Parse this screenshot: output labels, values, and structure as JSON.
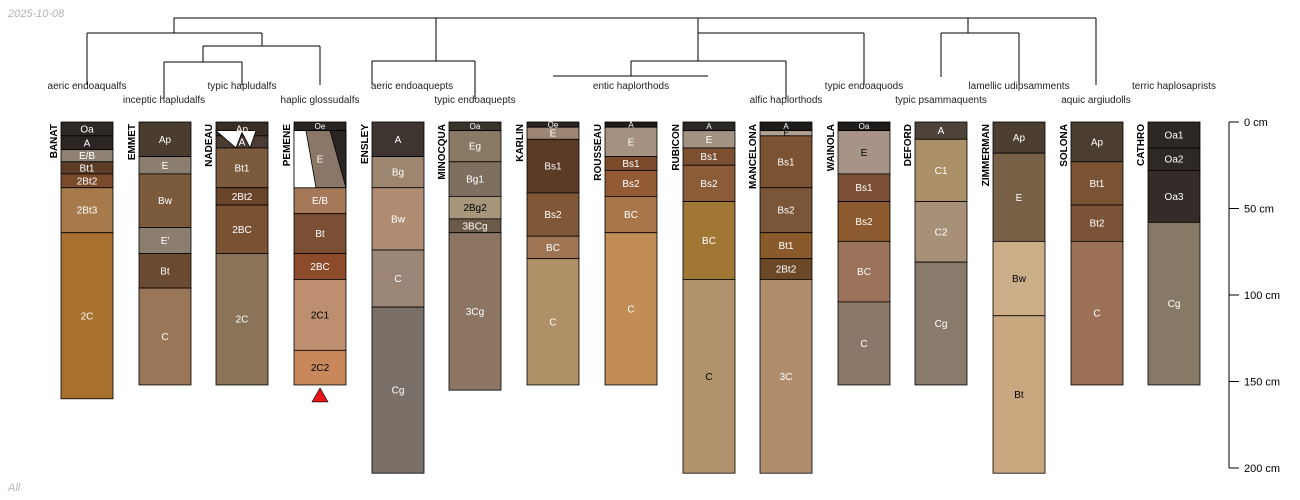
{
  "date_label": "2025-10-08",
  "subset_label": "All",
  "chart_data": {
    "type": "soil-profile-sketch",
    "title": "",
    "depth_unit": "cm",
    "depth_axis": {
      "ylim": [
        0,
        200
      ],
      "ticks": [
        0,
        50,
        100,
        150,
        200
      ],
      "tick_labels": [
        "0 cm",
        "50 cm",
        "100 cm",
        "150 cm",
        "200 cm"
      ]
    },
    "classification_labels": [
      {
        "text": "aeric endoaqualfs",
        "row": 1
      },
      {
        "text": "inceptic hapludalfs",
        "row": 2
      },
      {
        "text": "typic hapludalfs",
        "row": 1
      },
      {
        "text": "haplic glossudalfs",
        "row": 2
      },
      {
        "text": "aeric endoaquepts",
        "row": 1
      },
      {
        "text": "typic endoaquepts",
        "row": 2
      },
      {
        "text": "entic haplorthods",
        "row": 1
      },
      {
        "text": "alfic haplorthods",
        "row": 2
      },
      {
        "text": "typic endoaquods",
        "row": 1
      },
      {
        "text": "typic psammaquents",
        "row": 2
      },
      {
        "text": "lamellic udipsamments",
        "row": 1
      },
      {
        "text": "aquic argiudolls",
        "row": 2
      },
      {
        "text": "terric haplosaprists",
        "row": 1
      }
    ],
    "profiles": [
      {
        "name": "BANAT",
        "horizons": [
          {
            "name": "Oa",
            "top": 0,
            "bottom": 8,
            "color": "#2f2a26"
          },
          {
            "name": "A",
            "top": 8,
            "bottom": 16,
            "color": "#2b2622"
          },
          {
            "name": "E/B",
            "top": 16,
            "bottom": 23,
            "color": "#8f8275"
          },
          {
            "name": "Bt1",
            "top": 23,
            "bottom": 30,
            "color": "#5b3c27"
          },
          {
            "name": "2Bt2",
            "top": 30,
            "bottom": 38,
            "color": "#7a4a2a"
          },
          {
            "name": "2Bt3",
            "top": 38,
            "bottom": 64,
            "color": "#a77a4b"
          },
          {
            "name": "2C",
            "top": 64,
            "bottom": 160,
            "color": "#a8702e"
          }
        ]
      },
      {
        "name": "EMMET",
        "horizons": [
          {
            "name": "Ap",
            "top": 0,
            "bottom": 20,
            "color": "#4a3d30"
          },
          {
            "name": "E",
            "top": 20,
            "bottom": 30,
            "color": "#8c7e6f"
          },
          {
            "name": "Bw",
            "top": 30,
            "bottom": 61,
            "color": "#7c5a3c"
          },
          {
            "name": "E'",
            "top": 61,
            "bottom": 76,
            "color": "#8b7e6e"
          },
          {
            "name": "Bt",
            "top": 76,
            "bottom": 96,
            "color": "#6a4b32"
          },
          {
            "name": "C",
            "top": 96,
            "bottom": 152,
            "color": "#9a7658"
          }
        ]
      },
      {
        "name": "NADEAU",
        "horizons": [
          {
            "name": "Ap",
            "top": 0,
            "bottom": 8,
            "color": "#3b2e25"
          },
          {
            "name": "A",
            "top": 8,
            "bottom": 15,
            "color": "#4a3c32"
          },
          {
            "name": "Bt1",
            "top": 15,
            "bottom": 38,
            "color": "#7c5a3c"
          },
          {
            "name": "2Bt2",
            "top": 38,
            "bottom": 48,
            "color": "#6a4428"
          },
          {
            "name": "2BC",
            "top": 48,
            "bottom": 76,
            "color": "#7a5133"
          },
          {
            "name": "2C",
            "top": 76,
            "bottom": 152,
            "color": "#8a7358"
          }
        ]
      },
      {
        "name": "PEMENE",
        "horizons": [
          {
            "name": "Oe",
            "top": 0,
            "bottom": 5,
            "color": "#2a2522"
          },
          {
            "name": "E",
            "top": 5,
            "bottom": 38,
            "color": "#8a7767"
          },
          {
            "name": "E/B",
            "top": 38,
            "bottom": 53,
            "color": "#a6785a"
          },
          {
            "name": "Bt",
            "top": 53,
            "bottom": 76,
            "color": "#7b4f34"
          },
          {
            "name": "2BC",
            "top": 76,
            "bottom": 91,
            "color": "#8c4c2b"
          },
          {
            "name": "2C1",
            "top": 91,
            "bottom": 132,
            "color": "#bd8f70"
          },
          {
            "name": "2C2",
            "top": 132,
            "bottom": 152,
            "color": "#c8885c"
          }
        ]
      },
      {
        "name": "ENSLEY",
        "horizons": [
          {
            "name": "A",
            "top": 0,
            "bottom": 20,
            "color": "#3e3530"
          },
          {
            "name": "Bg",
            "top": 20,
            "bottom": 38,
            "color": "#9d8670"
          },
          {
            "name": "Bw",
            "top": 38,
            "bottom": 74,
            "color": "#b08c73"
          },
          {
            "name": "C",
            "top": 74,
            "bottom": 107,
            "color": "#9b8678"
          },
          {
            "name": "Cg",
            "top": 107,
            "bottom": 203,
            "color": "#7a7068"
          }
        ]
      },
      {
        "name": "MINOCQUA",
        "horizons": [
          {
            "name": "Oa",
            "top": 0,
            "bottom": 5,
            "color": "#3a332c"
          },
          {
            "name": "Eg",
            "top": 5,
            "bottom": 23,
            "color": "#8a7a65"
          },
          {
            "name": "Bg1",
            "top": 23,
            "bottom": 43,
            "color": "#7e705f"
          },
          {
            "name": "2Bg2",
            "top": 43,
            "bottom": 56,
            "color": "#a8967a"
          },
          {
            "name": "3BCg",
            "top": 56,
            "bottom": 64,
            "color": "#6b5a48"
          },
          {
            "name": "3Cg",
            "top": 64,
            "bottom": 155,
            "color": "#8c7663"
          }
        ]
      },
      {
        "name": "KARLIN",
        "horizons": [
          {
            "name": "Oe",
            "top": 0,
            "bottom": 3,
            "color": "#2b2520"
          },
          {
            "name": "E",
            "top": 3,
            "bottom": 10,
            "color": "#9e8675"
          },
          {
            "name": "Bs1",
            "top": 10,
            "bottom": 41,
            "color": "#5b3b26"
          },
          {
            "name": "Bs2",
            "top": 41,
            "bottom": 66,
            "color": "#805838"
          },
          {
            "name": "BC",
            "top": 66,
            "bottom": 79,
            "color": "#9e7452"
          },
          {
            "name": "C",
            "top": 79,
            "bottom": 152,
            "color": "#b09167"
          }
        ]
      },
      {
        "name": "ROUSSEAU",
        "horizons": [
          {
            "name": "A",
            "top": 0,
            "bottom": 3,
            "color": "#1e1b19"
          },
          {
            "name": "E",
            "top": 3,
            "bottom": 20,
            "color": "#a69180"
          },
          {
            "name": "Bs1",
            "top": 20,
            "bottom": 28,
            "color": "#7b4a2a"
          },
          {
            "name": "Bs2",
            "top": 28,
            "bottom": 43,
            "color": "#925b33"
          },
          {
            "name": "BC",
            "top": 43,
            "bottom": 64,
            "color": "#a9764a"
          },
          {
            "name": "C",
            "top": 64,
            "bottom": 152,
            "color": "#c18c55"
          }
        ]
      },
      {
        "name": "RUBICON",
        "horizons": [
          {
            "name": "A",
            "top": 0,
            "bottom": 5,
            "color": "#2c2824"
          },
          {
            "name": "E",
            "top": 5,
            "bottom": 15,
            "color": "#a29282"
          },
          {
            "name": "Bs1",
            "top": 15,
            "bottom": 25,
            "color": "#7b4f30"
          },
          {
            "name": "Bs2",
            "top": 25,
            "bottom": 46,
            "color": "#8a5c38"
          },
          {
            "name": "BC",
            "top": 46,
            "bottom": 91,
            "color": "#a07735"
          },
          {
            "name": "C",
            "top": 91,
            "bottom": 203,
            "color": "#b0926d"
          }
        ]
      },
      {
        "name": "MANCELONA",
        "horizons": [
          {
            "name": "A",
            "top": 0,
            "bottom": 5,
            "color": "#1f1b18"
          },
          {
            "name": "E",
            "top": 5,
            "bottom": 8,
            "color": "#b0a090"
          },
          {
            "name": "Bs1",
            "top": 8,
            "bottom": 38,
            "color": "#7b5232"
          },
          {
            "name": "Bs2",
            "top": 38,
            "bottom": 64,
            "color": "#7a5537"
          },
          {
            "name": "Bt1",
            "top": 64,
            "bottom": 79,
            "color": "#8a5a2a"
          },
          {
            "name": "2Bt2",
            "top": 79,
            "bottom": 91,
            "color": "#6b4828"
          },
          {
            "name": "3C",
            "top": 91,
            "bottom": 203,
            "color": "#b08d6d"
          }
        ]
      },
      {
        "name": "WAINOLA",
        "horizons": [
          {
            "name": "Oa",
            "top": 0,
            "bottom": 5,
            "color": "#1e1b19"
          },
          {
            "name": "E",
            "top": 5,
            "bottom": 30,
            "color": "#a89486"
          },
          {
            "name": "Bs1",
            "top": 30,
            "bottom": 46,
            "color": "#7b4f35"
          },
          {
            "name": "Bs2",
            "top": 46,
            "bottom": 69,
            "color": "#8b5a2e"
          },
          {
            "name": "BC",
            "top": 69,
            "bottom": 104,
            "color": "#9a735a"
          },
          {
            "name": "C",
            "top": 104,
            "bottom": 152,
            "color": "#8c7868"
          }
        ]
      },
      {
        "name": "DEFORD",
        "horizons": [
          {
            "name": "A",
            "top": 0,
            "bottom": 10,
            "color": "#4f4339"
          },
          {
            "name": "C1",
            "top": 10,
            "bottom": 46,
            "color": "#ab9068"
          },
          {
            "name": "C2",
            "top": 46,
            "bottom": 81,
            "color": "#a89078"
          },
          {
            "name": "Cg",
            "top": 81,
            "bottom": 152,
            "color": "#897a6c"
          }
        ]
      },
      {
        "name": "ZIMMERMAN",
        "horizons": [
          {
            "name": "Ap",
            "top": 0,
            "bottom": 18,
            "color": "#4c3f32"
          },
          {
            "name": "E",
            "top": 18,
            "bottom": 69,
            "color": "#786147"
          },
          {
            "name": "Bw",
            "top": 69,
            "bottom": 112,
            "color": "#cbae88"
          },
          {
            "name": "Bt",
            "top": 112,
            "bottom": 203,
            "color": "#c9a87f"
          }
        ]
      },
      {
        "name": "SOLONA",
        "horizons": [
          {
            "name": "Ap",
            "top": 0,
            "bottom": 23,
            "color": "#4b3e31"
          },
          {
            "name": "Bt1",
            "top": 23,
            "bottom": 48,
            "color": "#7a5234"
          },
          {
            "name": "Bt2",
            "top": 48,
            "bottom": 69,
            "color": "#7b5438"
          },
          {
            "name": "C",
            "top": 69,
            "bottom": 152,
            "color": "#9b7056"
          }
        ]
      },
      {
        "name": "CATHRO",
        "horizons": [
          {
            "name": "Oa1",
            "top": 0,
            "bottom": 15,
            "color": "#2e2824"
          },
          {
            "name": "Oa2",
            "top": 15,
            "bottom": 28,
            "color": "#2f2925"
          },
          {
            "name": "Oa3",
            "top": 28,
            "bottom": 58,
            "color": "#332c28"
          },
          {
            "name": "Cg",
            "top": 58,
            "bottom": 152,
            "color": "#867a66"
          }
        ]
      }
    ],
    "markers": [
      {
        "profile": "PEMENE",
        "symbol": "triangle",
        "color": "#e8141a"
      }
    ],
    "wavy_boundaries": [
      {
        "profile": "NADEAU",
        "horizons": [
          "Ap",
          "A"
        ]
      },
      {
        "profile": "PEMENE",
        "horizons": [
          "Oe",
          "E"
        ]
      }
    ]
  }
}
